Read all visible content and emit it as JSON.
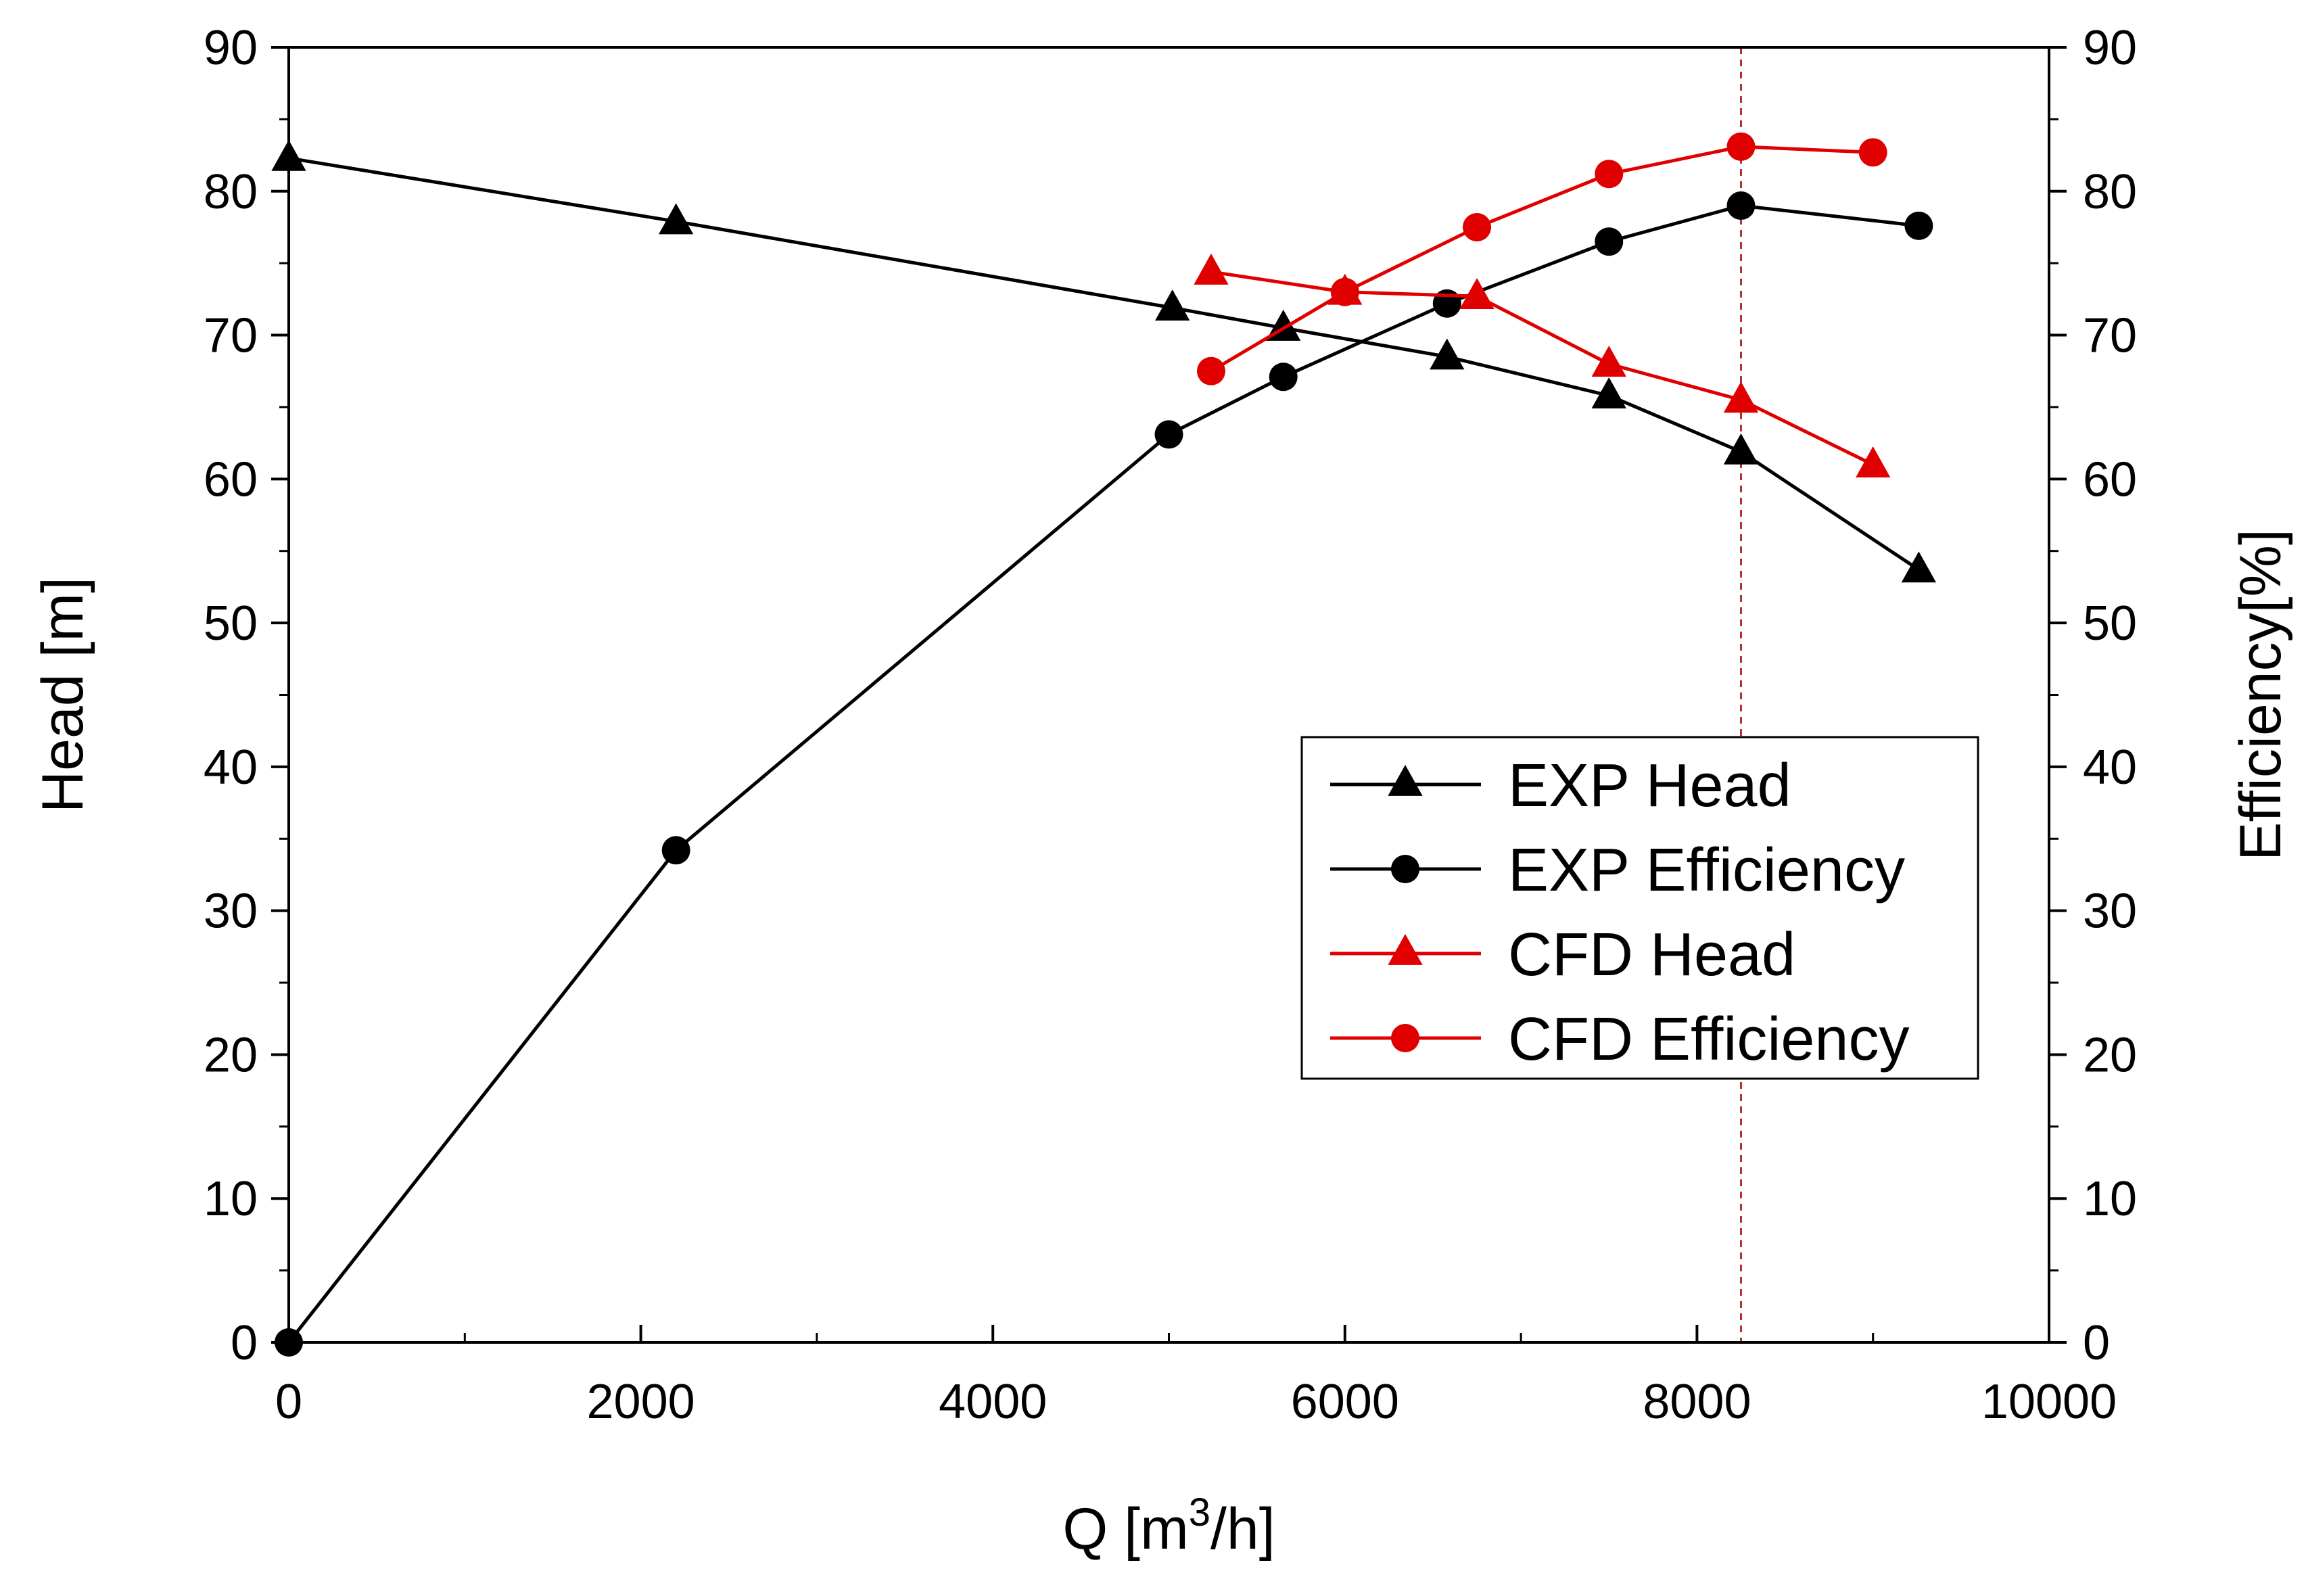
{
  "chart_data": {
    "type": "line",
    "title": "",
    "xlabel": {
      "prefix": "Q [m",
      "sup": "3",
      "suffix": "/h]"
    },
    "ylabel": "Head [m]",
    "y2label": "Efficiency[%]",
    "xlim": [
      0,
      10000
    ],
    "ylim": [
      0,
      90
    ],
    "y2lim": [
      0,
      90
    ],
    "x_ticks": [
      0,
      2000,
      4000,
      6000,
      8000,
      10000
    ],
    "y_ticks": [
      0,
      10,
      20,
      30,
      40,
      50,
      60,
      70,
      80,
      90
    ],
    "y2_ticks": [
      0,
      10,
      20,
      30,
      40,
      50,
      60,
      70,
      80,
      90
    ],
    "grid": false,
    "legend_position": "lower-right",
    "reference_line": {
      "x": 8250,
      "color": "#b03030",
      "style": "dashed"
    },
    "series": [
      {
        "name": "EXP Head",
        "marker": "triangle",
        "color": "#000000",
        "axis": "left",
        "x": [
          0,
          2200,
          5020,
          5650,
          6580,
          7500,
          8250,
          9260
        ],
        "values": [
          82.3,
          77.9,
          71.9,
          70.5,
          68.5,
          65.8,
          61.9,
          53.7
        ]
      },
      {
        "name": "EXP Efficiency",
        "marker": "circle",
        "color": "#000000",
        "axis": "right",
        "x": [
          0,
          2200,
          5000,
          5650,
          6580,
          7500,
          8250,
          9260
        ],
        "values": [
          0,
          34.2,
          63.1,
          67.1,
          72.2,
          76.5,
          79,
          77.6
        ]
      },
      {
        "name": "CFD Head",
        "marker": "triangle",
        "color": "#e00000",
        "axis": "left",
        "x": [
          5240,
          6000,
          6750,
          7500,
          8250,
          9000
        ],
        "values": [
          74.4,
          73,
          72.7,
          68,
          65.5,
          61
        ]
      },
      {
        "name": "CFD Efficiency",
        "marker": "circle",
        "color": "#e00000",
        "axis": "right",
        "x": [
          5240,
          6000,
          6750,
          7500,
          8250,
          9000
        ],
        "values": [
          67.5,
          73,
          77.5,
          81.2,
          83.1,
          82.7
        ]
      }
    ]
  }
}
